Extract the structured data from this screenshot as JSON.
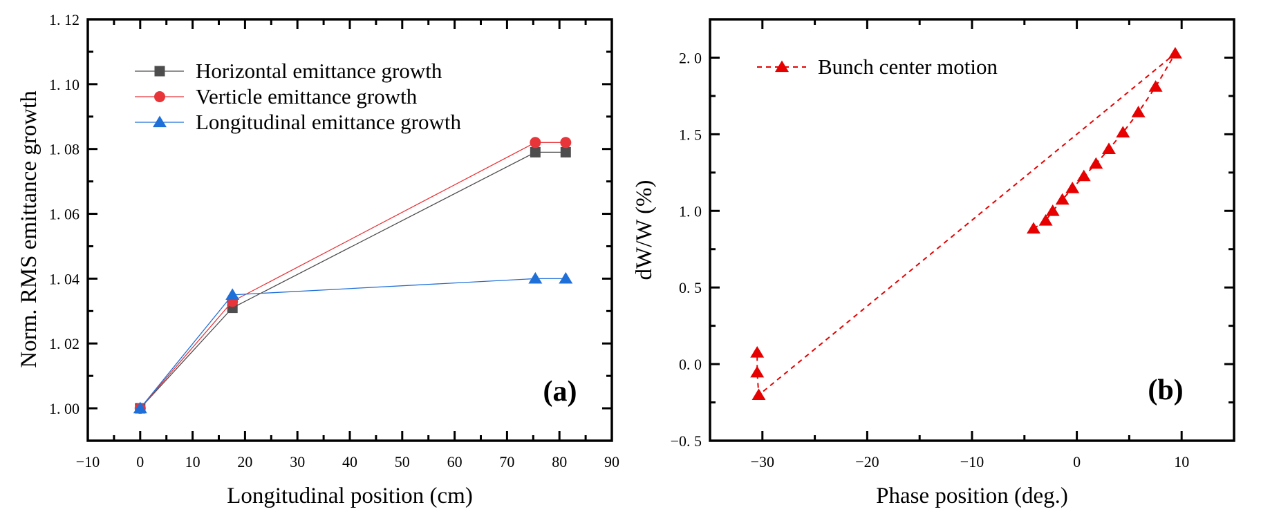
{
  "chart_data": [
    {
      "id": "a",
      "type": "line",
      "panel_label": "(a)",
      "title": "",
      "xlabel": "Longitudinal position (cm)",
      "ylabel": "Norm. RMS emittance growth",
      "xlim": [
        -10,
        90
      ],
      "ylim": [
        0.99,
        1.12
      ],
      "x_ticks": [
        -10,
        0,
        10,
        20,
        30,
        40,
        50,
        60,
        70,
        80,
        90
      ],
      "x_tick_labels": [
        "−10",
        "0",
        "10",
        "20",
        "30",
        "40",
        "50",
        "60",
        "70",
        "80",
        "90"
      ],
      "y_ticks": [
        1.0,
        1.02,
        1.04,
        1.06,
        1.08,
        1.1,
        1.12
      ],
      "y_tick_labels": [
        "1. 00",
        "1. 02",
        "1. 04",
        "1. 06",
        "1. 08",
        "1. 10",
        "1. 12"
      ],
      "grid": false,
      "legend_position": "top-left",
      "x": [
        0,
        17.6,
        75.4,
        81.2
      ],
      "series": [
        {
          "name": "Horizontal emittance growth",
          "marker": "square",
          "color": "#4d4d4d",
          "line_style": "solid",
          "values": [
            1.0,
            1.031,
            1.079,
            1.079
          ]
        },
        {
          "name": "Verticle emittance growth",
          "marker": "circle",
          "color": "#e8353a",
          "line_style": "solid",
          "values": [
            1.0,
            1.033,
            1.082,
            1.082
          ]
        },
        {
          "name": "Longitudinal emittance growth",
          "marker": "triangle",
          "color": "#1f6fd8",
          "line_style": "solid",
          "values": [
            1.0,
            1.035,
            1.04,
            1.04
          ]
        }
      ]
    },
    {
      "id": "b",
      "type": "line",
      "panel_label": "(b)",
      "title": "",
      "xlabel": "Phase position (deg.)",
      "ylabel": "dW/W (%)",
      "xlim": [
        -35,
        15
      ],
      "ylim": [
        -0.5,
        2.25
      ],
      "x_ticks": [
        -30,
        -20,
        -10,
        0,
        10
      ],
      "x_tick_labels": [
        "−30",
        "−20",
        "−10",
        "0",
        "10"
      ],
      "y_ticks": [
        -0.5,
        0.0,
        0.5,
        1.0,
        1.5,
        2.0
      ],
      "y_tick_labels": [
        "−0. 5",
        "0. 0",
        "0. 5",
        "1. 0",
        "1. 5",
        "2. 0"
      ],
      "grid": false,
      "legend_position": "top-left",
      "series": [
        {
          "name": "Bunch center motion",
          "marker": "triangle",
          "color": "#e60000",
          "line_style": "dashed",
          "x": [
            -4.13,
            -2.97,
            -2.3,
            -1.38,
            -0.42,
            0.67,
            1.83,
            3.06,
            4.4,
            5.87,
            7.52,
            9.39,
            -30.35,
            -30.5,
            -30.5
          ],
          "y": [
            0.884,
            0.936,
            0.999,
            1.073,
            1.148,
            1.226,
            1.307,
            1.403,
            1.511,
            1.643,
            1.81,
            2.027,
            -0.202,
            -0.055,
            0.075
          ]
        }
      ]
    }
  ]
}
